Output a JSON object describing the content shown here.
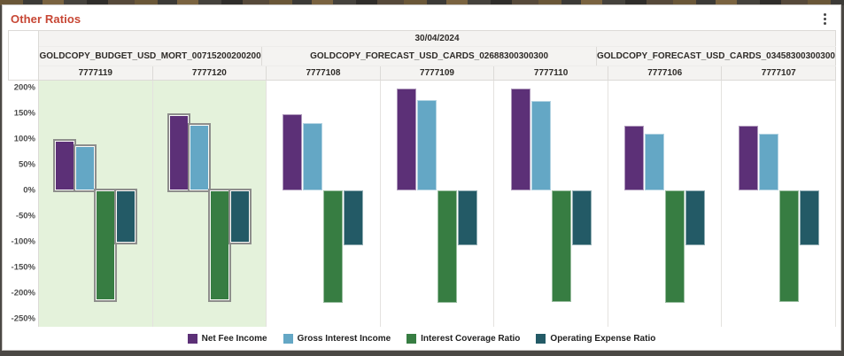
{
  "header": {
    "title": "Other Ratios",
    "menu_icon": "kebab-menu"
  },
  "chart_data": {
    "type": "bar",
    "title": "Other Ratios",
    "date_header": "30/04/2024",
    "y_axis": {
      "unit": "%",
      "ticks": [
        "200%",
        "150%",
        "100%",
        "50%",
        "0%",
        "-50%",
        "-100%",
        "-150%",
        "-200%",
        "-250%"
      ],
      "tick_values": [
        200,
        150,
        100,
        50,
        0,
        -50,
        -100,
        -150,
        -200,
        -250
      ],
      "max": 213,
      "min": -266,
      "grid": false
    },
    "groups": [
      {
        "label": "GOLDCOPY_BUDGET_USD_MORT_00715200200200",
        "columns": [
          "7777119",
          "7777120"
        ]
      },
      {
        "label": "GOLDCOPY_FORECAST_USD_CARDS_02688300300300",
        "columns": [
          "7777108",
          "7777109",
          "7777110"
        ]
      },
      {
        "label": "GOLDCOPY_FORECAST_USD_CARDS_03458300300300",
        "columns": [
          "7777106",
          "7777107"
        ]
      }
    ],
    "series": [
      {
        "name": "Net Fee Income",
        "color": "#5C3077"
      },
      {
        "name": "Gross Interest Income",
        "color": "#64A7C5"
      },
      {
        "name": "Interest Coverage Ratio",
        "color": "#377D42"
      },
      {
        "name": "Operating Expense Ratio",
        "color": "#235A66"
      }
    ],
    "columns": [
      {
        "id": "7777119",
        "selected": true,
        "values": [
          95,
          85,
          -215,
          -103
        ]
      },
      {
        "id": "7777120",
        "selected": true,
        "values": [
          145,
          127,
          -214,
          -102
        ]
      },
      {
        "id": "7777108",
        "selected": false,
        "values": [
          148,
          130,
          -219,
          -107
        ]
      },
      {
        "id": "7777109",
        "selected": false,
        "values": [
          198,
          175,
          -219,
          -108
        ]
      },
      {
        "id": "7777110",
        "selected": false,
        "values": [
          197,
          174,
          -218,
          -107
        ]
      },
      {
        "id": "7777106",
        "selected": false,
        "values": [
          125,
          109,
          -219,
          -107
        ]
      },
      {
        "id": "7777107",
        "selected": false,
        "values": [
          125,
          110,
          -218,
          -108
        ]
      }
    ],
    "legend": {
      "position": "bottom",
      "items": [
        "Net Fee Income",
        "Gross Interest Income",
        "Interest Coverage Ratio",
        "Operating Expense Ratio"
      ]
    },
    "selected_background": "#E4F2DB",
    "title_color": "#C74634"
  }
}
